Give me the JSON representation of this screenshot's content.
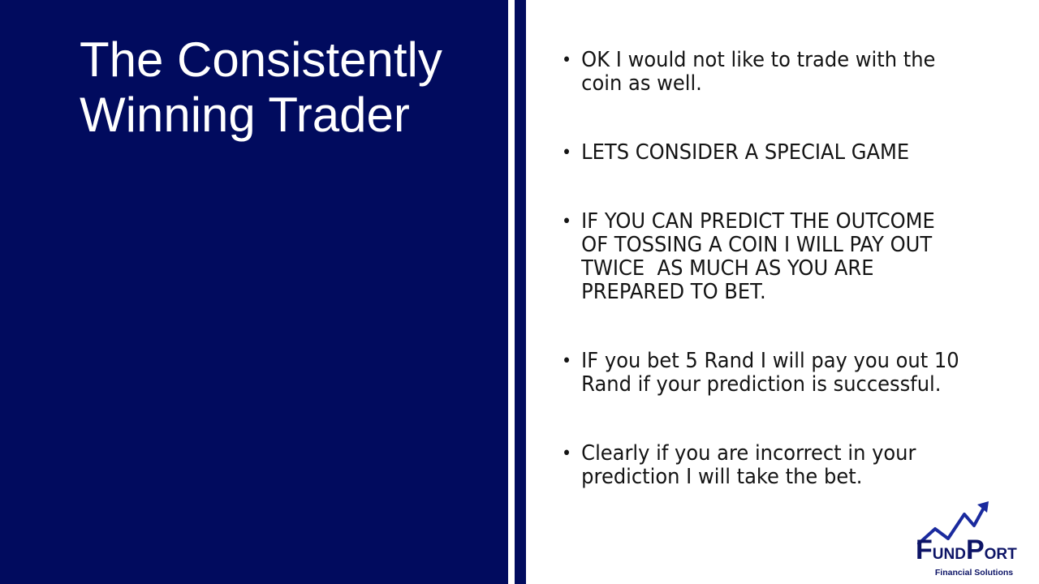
{
  "slide": {
    "title_lines": [
      "The Consistently",
      "Winning Trader"
    ],
    "bullet_symbol": "•",
    "bullets": [
      {
        "lines": [
          "OK I would not like to trade with the",
          "coin as well."
        ]
      },
      {
        "lines": [
          "LETS CONSIDER A SPECIAL GAME"
        ]
      },
      {
        "lines": [
          "IF YOU CAN PREDICT THE OUTCOME",
          "OF TOSSING A COIN I WILL PAY OUT",
          "TWICE  AS MUCH AS YOU ARE",
          "PREPARED TO BET."
        ]
      },
      {
        "lines": [
          "IF you bet 5 Rand I will pay you out 10",
          "Rand if your prediction is successful."
        ]
      },
      {
        "lines": [
          "Clearly if you are incorrect in your",
          "prediction I will take the bet."
        ]
      }
    ]
  },
  "logo": {
    "word_part1_big": "F",
    "word_part1_small": "UND",
    "word_part2_big": "P",
    "word_part2_small": "ORT",
    "tagline": "Financial Solutions"
  },
  "colors": {
    "navy": "#010b5e",
    "title_text": "#ffffff",
    "body_text": "#141414",
    "logo_navy": "#0d1466",
    "logo_arrow": "#1a2a9e"
  }
}
